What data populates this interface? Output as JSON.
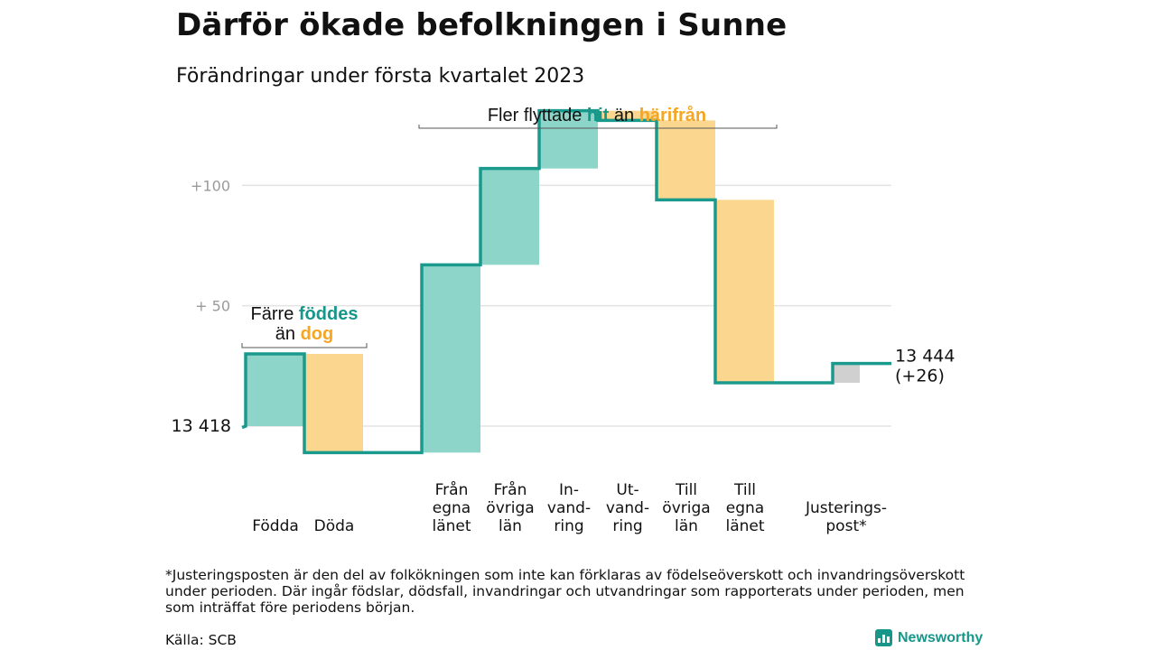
{
  "title": "Därför ökade befolkningen i Sunne",
  "subtitle": "Förändringar under första kvartalet 2023",
  "colors": {
    "teal_line": "#1a9a8c",
    "teal_fill": "#8ed5c9",
    "orange_fill": "#fbd68f",
    "grey_fill": "#d0d0d0",
    "teal_text": "#16978a",
    "orange_text": "#f5a623"
  },
  "chart_data": {
    "type": "waterfall",
    "start": {
      "value": 13418,
      "label": "13 418"
    },
    "end": {
      "value": 13444,
      "label": "13 444",
      "change_label": "(+26)"
    },
    "y_ticks": [
      {
        "value": 50,
        "label": "+ 50"
      },
      {
        "value": 100,
        "label": "+100"
      }
    ],
    "ylim": [
      -15,
      135
    ],
    "grid": true,
    "steps": [
      {
        "id": "fodda",
        "label": [
          "Födda"
        ],
        "change": 30,
        "kind": "in"
      },
      {
        "id": "doda",
        "label": [
          "Döda"
        ],
        "change": -41,
        "kind": "out"
      },
      {
        "id": "fran_egna",
        "label": [
          "Från",
          "egna",
          "länet"
        ],
        "change": 78,
        "kind": "in"
      },
      {
        "id": "fran_ovriga",
        "label": [
          "Från",
          "övriga",
          "län"
        ],
        "change": 40,
        "kind": "in"
      },
      {
        "id": "invandring",
        "label": [
          "In-",
          "vand-",
          "ring"
        ],
        "change": 24,
        "kind": "in"
      },
      {
        "id": "utvandring",
        "label": [
          "Ut-",
          "vand-",
          "ring"
        ],
        "change": -4,
        "kind": "out"
      },
      {
        "id": "till_ovriga",
        "label": [
          "Till",
          "övriga",
          "län"
        ],
        "change": -33,
        "kind": "out"
      },
      {
        "id": "till_egna",
        "label": [
          "Till",
          "egna",
          "länet"
        ],
        "change": -76,
        "kind": "out"
      },
      {
        "id": "justering",
        "label": [
          "Justerings-",
          "post*"
        ],
        "change": 8,
        "kind": "adj"
      }
    ],
    "annotations": {
      "natural": {
        "line1_a": "Färre ",
        "line1_b": "föddes",
        "line2_a": "än ",
        "line2_b": "dog"
      },
      "migration": {
        "a": "Fler flyttade ",
        "b": "hit",
        "c": " än ",
        "d": "härifrån"
      }
    }
  },
  "footnote": "*Justeringsposten är den del av folkökningen som inte kan förklaras av födelseöverskott och invandringsöverskott under perioden. Där ingår födslar, dödsfall, invandringar och utvandringar som rapporterats under perioden, men som inträffat före periodens början.",
  "source": "Källa: SCB",
  "brand": "Newsworthy"
}
